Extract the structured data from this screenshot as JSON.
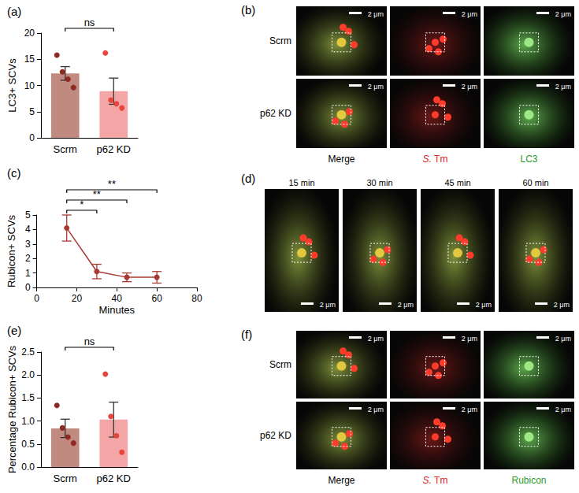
{
  "chart_data": [
    {
      "type": "bar",
      "title": "(a)",
      "y_label": "LC3+ SCVs",
      "categories": [
        "Scrm",
        "p62 KD"
      ],
      "values": [
        12.3,
        8.9
      ],
      "errors": [
        1.3,
        2.5
      ],
      "colors": [
        "#c08a80",
        "#f4a6a6"
      ],
      "points": [
        {
          "color": "#8e2a22",
          "values": [
            15.8,
            12.6,
            11.2,
            9.6
          ]
        },
        {
          "color": "#e8453c",
          "values": [
            16.2,
            7.2,
            6.5,
            5.7
          ]
        }
      ],
      "annotations": [
        {
          "from": "Scrm",
          "to": "p62 KD",
          "label": "ns"
        }
      ],
      "ylim": [
        0,
        20
      ],
      "yticks": [
        0,
        5,
        10,
        15,
        20
      ],
      "grid": false
    },
    {
      "type": "line",
      "title": "(c)",
      "x_label": "Minutes",
      "y_label": "Rubicon+ SCVs",
      "x": [
        15,
        30,
        45,
        60
      ],
      "values": [
        4.1,
        1.1,
        0.7,
        0.7
      ],
      "errors": [
        0.9,
        0.5,
        0.3,
        0.4
      ],
      "color": "#a83a32",
      "marker": "circle",
      "annotations": [
        {
          "from": 15,
          "to": 30,
          "label": "*"
        },
        {
          "from": 15,
          "to": 45,
          "label": "**"
        },
        {
          "from": 15,
          "to": 60,
          "label": "**"
        }
      ],
      "xlim": [
        0,
        80
      ],
      "xticks": [
        0,
        20,
        40,
        60,
        80
      ],
      "ylim": [
        0,
        5
      ],
      "yticks": [
        0,
        1,
        2,
        3,
        4,
        5
      ],
      "grid": false
    },
    {
      "type": "bar",
      "title": "(e)",
      "y_label": "Percentage Rubicon+ SCVs",
      "categories": [
        "Scrm",
        "p62 KD"
      ],
      "values": [
        0.84,
        1.03
      ],
      "errors": [
        0.2,
        0.38
      ],
      "colors": [
        "#c08a80",
        "#f4a6a6"
      ],
      "points": [
        {
          "color": "#8e2a22",
          "values": [
            1.34,
            0.85,
            0.65,
            0.52
          ]
        },
        {
          "color": "#e8453c",
          "values": [
            2.02,
            1.1,
            0.68,
            0.32
          ]
        }
      ],
      "annotations": [
        {
          "from": "Scrm",
          "to": "p62 KD",
          "label": "ns"
        }
      ],
      "ylim": [
        0,
        2.5
      ],
      "yticks": [
        {
          "value": 0,
          "label": "0.0"
        },
        0.5,
        {
          "value": 1,
          "label": "1.0"
        },
        1.5,
        {
          "value": 2,
          "label": "2.0"
        },
        2.5
      ],
      "grid": false
    }
  ],
  "images": [
    {
      "title": "(b)",
      "rows": [
        "Scrm",
        "p62 KD"
      ],
      "columns": [
        "Merge",
        "S. Tm",
        "LC3"
      ],
      "scale_bar": "2 μm"
    },
    {
      "title": "(d)",
      "columns": [
        "15 min",
        "30 min",
        "45 min",
        "60 min"
      ],
      "scale_bar": "2 μm"
    },
    {
      "title": "(f)",
      "rows": [
        "Scrm",
        "p62 KD"
      ],
      "columns": [
        "Merge",
        "S. Tm",
        "Rubicon"
      ],
      "scale_bar": "2 μm"
    }
  ]
}
